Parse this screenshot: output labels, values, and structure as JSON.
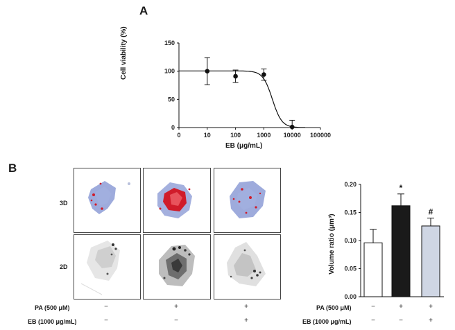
{
  "panels": {
    "a": "A",
    "b": "B"
  },
  "chart_data": [
    {
      "type": "scatter",
      "title": "",
      "xlabel": "EB (μg/mL)",
      "ylabel": "Cell viability (%)",
      "xscale": "log",
      "xlim": [
        1,
        100000
      ],
      "ylim": [
        0,
        150
      ],
      "x_ticks": [
        "0",
        "10",
        "100",
        "1000",
        "10000",
        "100000"
      ],
      "y_ticks": [
        "0",
        "50",
        "100",
        "150"
      ],
      "x": [
        10,
        100,
        1000,
        10000
      ],
      "values": [
        100,
        91,
        94,
        1
      ],
      "error": [
        24,
        11,
        10,
        12
      ],
      "fit": "sigmoid",
      "grid": false
    },
    {
      "type": "bar",
      "title": "",
      "ylabel": "Volume ratio (μm³)",
      "ylim": [
        0,
        0.2
      ],
      "y_ticks": [
        "0.00",
        "0.05",
        "0.10",
        "0.15",
        "0.20"
      ],
      "values": [
        0.096,
        0.162,
        0.126
      ],
      "error": [
        0.024,
        0.021,
        0.014
      ],
      "colors": [
        "#ffffff",
        "#1a1a1a",
        "#cfd6e4"
      ],
      "annotations": [
        "",
        "*",
        "#"
      ],
      "grid": false
    }
  ],
  "images": {
    "row_labels": [
      "3D",
      "2D"
    ]
  },
  "conditions": {
    "pa_label": "PA (500 μM)",
    "eb_label": "EB (1000 μg/mL)",
    "pa": [
      "−",
      "+",
      "+"
    ],
    "eb": [
      "−",
      "−",
      "+"
    ]
  },
  "colors": {
    "stain_red": "#d01c2a",
    "stain_blue": "#7d8fd0",
    "gray": "#8a8a8a"
  }
}
